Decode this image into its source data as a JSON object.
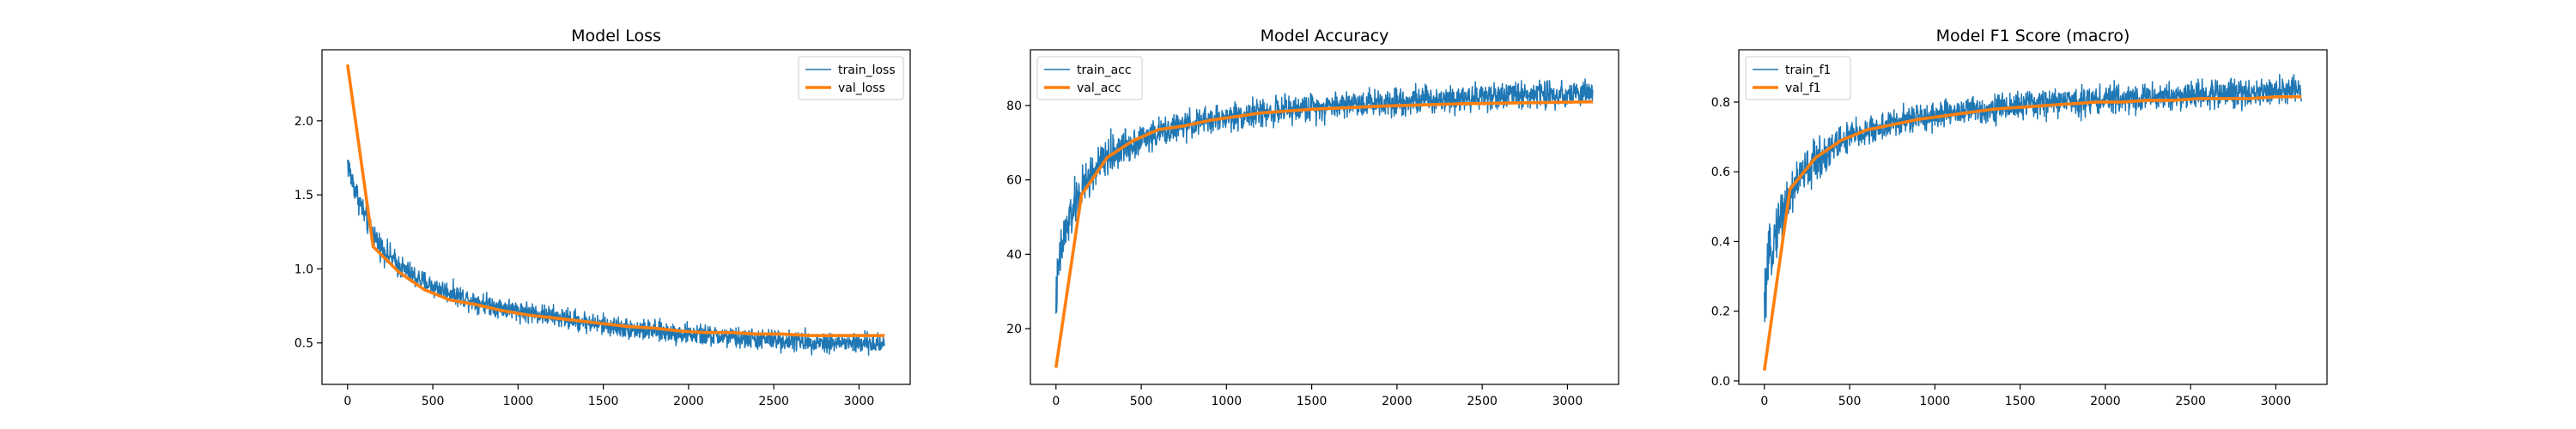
{
  "chart_data": [
    {
      "type": "line",
      "title": "Model Loss",
      "xlabel": "",
      "ylabel": "",
      "xlim": [
        -150,
        3300
      ],
      "ylim": [
        0.22,
        2.48
      ],
      "xticks": [
        0,
        500,
        1000,
        1500,
        2000,
        2500,
        3000
      ],
      "yticks": [
        0.5,
        1.0,
        1.5,
        2.0
      ],
      "ytick_labels": [
        "0.5",
        "1.0",
        "1.5",
        "2.0"
      ],
      "legend": "top-right",
      "grid": false,
      "series": [
        {
          "name": "train_loss",
          "color": "#1f77b4",
          "style": "noisy",
          "x": [
            0,
            20,
            50,
            100,
            150,
            200,
            300,
            400,
            500,
            700,
            900,
            1100,
            1300,
            1500,
            1700,
            1900,
            2100,
            2300,
            2500,
            2700,
            2900,
            3150
          ],
          "y": [
            1.72,
            1.62,
            1.52,
            1.36,
            1.24,
            1.14,
            1.02,
            0.94,
            0.88,
            0.8,
            0.74,
            0.7,
            0.66,
            0.62,
            0.59,
            0.57,
            0.55,
            0.53,
            0.52,
            0.51,
            0.5,
            0.49
          ],
          "noise": [
            0.08,
            0.06
          ]
        },
        {
          "name": "val_loss",
          "color": "#ff7f0e",
          "style": "smooth",
          "x": [
            0,
            150,
            300,
            450,
            600,
            750,
            900,
            1050,
            1200,
            1350,
            1500,
            1650,
            1800,
            1950,
            2100,
            2250,
            2400,
            2550,
            2700,
            2850,
            3000,
            3150
          ],
          "y": [
            2.38,
            1.15,
            0.98,
            0.86,
            0.79,
            0.76,
            0.72,
            0.69,
            0.67,
            0.65,
            0.63,
            0.61,
            0.6,
            0.58,
            0.57,
            0.57,
            0.56,
            0.56,
            0.55,
            0.55,
            0.55,
            0.55
          ]
        }
      ]
    },
    {
      "type": "line",
      "title": "Model Accuracy",
      "xlabel": "",
      "ylabel": "",
      "xlim": [
        -150,
        3300
      ],
      "ylim": [
        5,
        95
      ],
      "xticks": [
        0,
        500,
        1000,
        1500,
        2000,
        2500,
        3000
      ],
      "yticks": [
        20,
        40,
        60,
        80
      ],
      "ytick_labels": [
        "20",
        "40",
        "60",
        "80"
      ],
      "legend": "top-left",
      "grid": false,
      "series": [
        {
          "name": "train_acc",
          "color": "#1f77b4",
          "style": "noisy",
          "x": [
            0,
            20,
            50,
            100,
            150,
            200,
            300,
            400,
            500,
            700,
            900,
            1100,
            1300,
            1500,
            1700,
            1900,
            2100,
            2300,
            2500,
            2700,
            2900,
            3150
          ],
          "y": [
            28,
            38,
            45,
            52,
            57,
            61,
            66,
            69,
            71,
            74,
            76,
            77.5,
            78.5,
            79.5,
            80.5,
            81,
            81.5,
            82,
            82.5,
            83,
            83,
            83.5
          ],
          "noise": [
            6,
            3.2
          ]
        },
        {
          "name": "val_acc",
          "color": "#ff7f0e",
          "style": "smooth",
          "x": [
            0,
            150,
            300,
            450,
            600,
            750,
            900,
            1050,
            1200,
            1350,
            1500,
            1650,
            1800,
            1950,
            2100,
            2250,
            2400,
            2550,
            2700,
            2850,
            3000,
            3150
          ],
          "y": [
            9.5,
            56,
            66,
            70.5,
            73.5,
            74.5,
            76,
            77,
            78,
            78.5,
            79,
            79.3,
            79.6,
            79.9,
            80.1,
            80.3,
            80.5,
            80.6,
            80.7,
            80.8,
            80.9,
            81
          ]
        }
      ]
    },
    {
      "type": "line",
      "title": "Model F1 Score (macro)",
      "xlabel": "",
      "ylabel": "",
      "xlim": [
        -150,
        3300
      ],
      "ylim": [
        -0.01,
        0.95
      ],
      "xticks": [
        0,
        500,
        1000,
        1500,
        2000,
        2500,
        3000
      ],
      "yticks": [
        0.0,
        0.2,
        0.4,
        0.6,
        0.8
      ],
      "ytick_labels": [
        "0.0",
        "0.2",
        "0.4",
        "0.6",
        "0.8"
      ],
      "legend": "top-left",
      "grid": false,
      "series": [
        {
          "name": "train_f1",
          "color": "#1f77b4",
          "style": "noisy",
          "x": [
            0,
            20,
            50,
            100,
            150,
            200,
            300,
            400,
            500,
            700,
            900,
            1100,
            1300,
            1500,
            1700,
            1900,
            2100,
            2300,
            2500,
            2700,
            2900,
            3150
          ],
          "y": [
            0.2,
            0.32,
            0.4,
            0.48,
            0.53,
            0.58,
            0.63,
            0.67,
            0.7,
            0.73,
            0.755,
            0.77,
            0.78,
            0.79,
            0.8,
            0.805,
            0.81,
            0.815,
            0.82,
            0.825,
            0.83,
            0.835
          ],
          "noise": [
            0.07,
            0.035
          ]
        },
        {
          "name": "val_f1",
          "color": "#ff7f0e",
          "style": "smooth",
          "x": [
            0,
            150,
            300,
            450,
            600,
            750,
            900,
            1050,
            1200,
            1350,
            1500,
            1650,
            1800,
            1950,
            2100,
            2250,
            2400,
            2550,
            2700,
            2850,
            3000,
            3150
          ],
          "y": [
            0.03,
            0.55,
            0.64,
            0.69,
            0.72,
            0.735,
            0.75,
            0.76,
            0.77,
            0.78,
            0.785,
            0.79,
            0.795,
            0.8,
            0.8,
            0.805,
            0.805,
            0.81,
            0.81,
            0.81,
            0.815,
            0.815
          ]
        }
      ]
    }
  ]
}
